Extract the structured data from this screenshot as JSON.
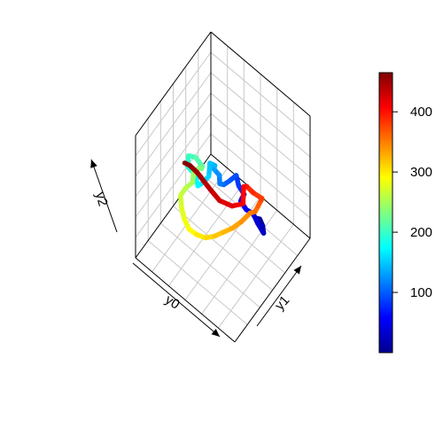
{
  "chart_data": {
    "type": "line",
    "plot_type": "3D trajectory",
    "axes": {
      "x_label": "y0",
      "y_label": "y1",
      "z_label": "y2",
      "x_ticks": [],
      "y_ticks": [],
      "z_ticks": []
    },
    "grid": true,
    "box": "open box with grid on back faces",
    "colorbar": {
      "palette": "jet",
      "min": 0,
      "max": 465,
      "ticks": [
        100,
        200,
        300,
        400
      ],
      "tick_labels": [
        "100",
        "200",
        "300",
        "400"
      ],
      "placement": "right"
    },
    "colors": {
      "jet": [
        "#00008F",
        "#0000FF",
        "#0080FF",
        "#00FFFF",
        "#80FF80",
        "#FFFF00",
        "#FF8000",
        "#FF0000",
        "#800000"
      ]
    },
    "series": [
      {
        "points": [
          [
            0.32,
            0.72,
            0.18
          ],
          [
            0.28,
            0.7,
            0.22
          ],
          [
            0.22,
            0.66,
            0.24
          ],
          [
            0.18,
            0.62,
            0.24
          ],
          [
            0.24,
            0.62,
            0.28
          ],
          [
            0.3,
            0.64,
            0.3
          ],
          [
            0.34,
            0.6,
            0.34
          ],
          [
            0.38,
            0.58,
            0.4
          ],
          [
            0.34,
            0.54,
            0.48
          ],
          [
            0.3,
            0.52,
            0.56
          ],
          [
            0.34,
            0.5,
            0.62
          ],
          [
            0.38,
            0.52,
            0.66
          ],
          [
            0.42,
            0.48,
            0.62
          ],
          [
            0.46,
            0.46,
            0.58
          ],
          [
            0.5,
            0.46,
            0.56
          ],
          [
            0.52,
            0.48,
            0.6
          ],
          [
            0.56,
            0.46,
            0.64
          ],
          [
            0.58,
            0.5,
            0.62
          ],
          [
            0.6,
            0.46,
            0.66
          ],
          [
            0.58,
            0.42,
            0.6
          ],
          [
            0.62,
            0.4,
            0.54
          ],
          [
            0.66,
            0.38,
            0.5
          ],
          [
            0.7,
            0.4,
            0.54
          ],
          [
            0.74,
            0.42,
            0.52
          ],
          [
            0.78,
            0.4,
            0.56
          ],
          [
            0.8,
            0.44,
            0.6
          ],
          [
            0.76,
            0.48,
            0.58
          ],
          [
            0.72,
            0.52,
            0.5
          ],
          [
            0.76,
            0.56,
            0.42
          ],
          [
            0.8,
            0.58,
            0.38
          ],
          [
            0.84,
            0.56,
            0.34
          ],
          [
            0.82,
            0.52,
            0.3
          ],
          [
            0.86,
            0.48,
            0.26
          ],
          [
            0.88,
            0.44,
            0.22
          ],
          [
            0.84,
            0.4,
            0.18
          ],
          [
            0.78,
            0.36,
            0.16
          ],
          [
            0.72,
            0.34,
            0.14
          ],
          [
            0.66,
            0.36,
            0.12
          ],
          [
            0.6,
            0.4,
            0.1
          ],
          [
            0.54,
            0.44,
            0.12
          ],
          [
            0.48,
            0.48,
            0.16
          ],
          [
            0.42,
            0.52,
            0.2
          ],
          [
            0.36,
            0.56,
            0.26
          ],
          [
            0.3,
            0.6,
            0.34
          ],
          [
            0.22,
            0.56,
            0.44
          ],
          [
            0.16,
            0.52,
            0.56
          ],
          [
            0.1,
            0.48,
            0.68
          ],
          [
            0.06,
            0.44,
            0.76
          ],
          [
            0.12,
            0.4,
            0.8
          ],
          [
            0.2,
            0.42,
            0.78
          ],
          [
            0.26,
            0.46,
            0.7
          ],
          [
            0.22,
            0.4,
            0.64
          ],
          [
            0.3,
            0.36,
            0.6
          ],
          [
            0.38,
            0.3,
            0.64
          ],
          [
            0.44,
            0.26,
            0.72
          ],
          [
            0.48,
            0.22,
            0.8
          ],
          [
            0.52,
            0.18,
            0.88
          ],
          [
            0.56,
            0.14,
            0.94
          ],
          [
            0.58,
            0.1,
            0.98
          ]
        ]
      }
    ]
  }
}
